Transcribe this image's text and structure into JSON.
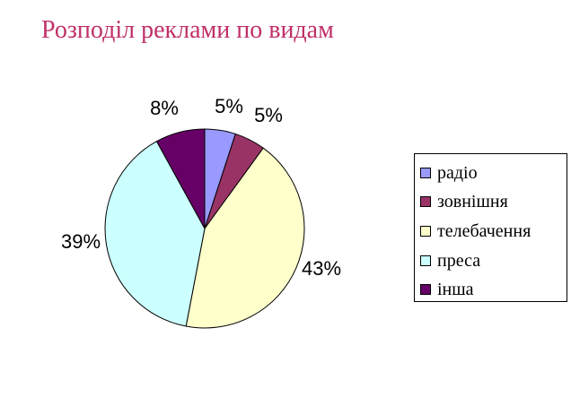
{
  "chart_data": {
    "type": "pie",
    "title": "Розподіл реклами по видам",
    "categories": [
      "радіо",
      "зовнішня",
      "телебачення",
      "преса",
      "інша"
    ],
    "values": [
      5,
      5,
      43,
      39,
      8
    ],
    "data_labels": [
      "5%",
      "5%",
      "43%",
      "39%",
      "8%"
    ],
    "colors": [
      "#9999ff",
      "#993366",
      "#ffffcc",
      "#ccffff",
      "#660066"
    ],
    "legend_position": "right"
  }
}
